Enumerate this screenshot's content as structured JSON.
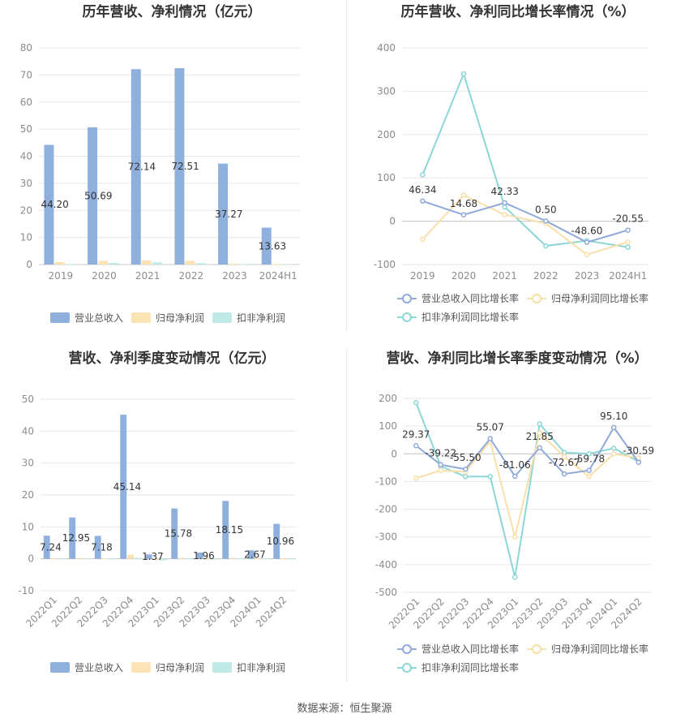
{
  "source_text": "数据来源：恒生聚源",
  "colors": {
    "revenue": "#8fb0dd",
    "net_profit": "#fbe3b5",
    "deducted": "#bfe9e7",
    "rev_growth": "#8fa9d8",
    "np_growth": "#f9dfa9",
    "ded_growth": "#8dd6d6",
    "grid": "#e6e6e6",
    "axis_text": "#8c8c8c",
    "label_text": "#333333"
  },
  "chart_data": [
    {
      "type": "bar",
      "title": "历年营收、净利情况（亿元）",
      "categories": [
        "2019",
        "2020",
        "2021",
        "2022",
        "2023",
        "2024H1"
      ],
      "yticks": [
        "80",
        "70",
        "60",
        "50",
        "40",
        "30",
        "20",
        "10",
        "0"
      ],
      "ylim": [
        0,
        80
      ],
      "series": [
        {
          "name": "营业总收入",
          "values": [
            44.2,
            50.69,
            72.14,
            72.51,
            37.27,
            13.63
          ],
          "labels": [
            "44.20",
            "50.69",
            "72.14",
            "72.51",
            "37.27",
            "13.63"
          ]
        },
        {
          "name": "归母净利润",
          "values": [
            0.9,
            1.4,
            1.5,
            1.4,
            0.3,
            0.2
          ]
        },
        {
          "name": "扣非净利润",
          "values": [
            0.2,
            0.6,
            0.8,
            0.5,
            0.2,
            0.1
          ]
        }
      ],
      "legend_position": "bottom"
    },
    {
      "type": "line",
      "title": "历年营收、净利同比增长率情况（%）",
      "categories": [
        "2019",
        "2020",
        "2021",
        "2022",
        "2023",
        "2024H1"
      ],
      "yticks": [
        "400",
        "300",
        "200",
        "100",
        "0",
        "-100"
      ],
      "ylim": [
        -100,
        400
      ],
      "series": [
        {
          "name": "营业总收入同比增长率",
          "values": [
            46.34,
            14.68,
            42.33,
            0.5,
            -48.6,
            -20.55
          ],
          "labels": [
            "46.34",
            "14.68",
            "42.33",
            "0.50",
            "-48.60",
            "-20.55"
          ]
        },
        {
          "name": "归母净利润同比增长率",
          "values": [
            -42,
            60,
            15,
            -5,
            -77,
            -48
          ]
        },
        {
          "name": "扣非净利润同比增长率",
          "values": [
            107,
            340,
            33,
            -57,
            -45,
            -60
          ]
        }
      ],
      "legend_position": "bottom"
    },
    {
      "type": "bar",
      "title": "营收、净利季度变动情况（亿元）",
      "categories": [
        "2022Q1",
        "2022Q2",
        "2022Q3",
        "2022Q4",
        "2023Q1",
        "2023Q2",
        "2023Q3",
        "2023Q4",
        "2024Q1",
        "2024Q2"
      ],
      "yticks": [
        "50",
        "40",
        "30",
        "20",
        "10",
        "0",
        "-10"
      ],
      "ylim": [
        -10,
        50
      ],
      "series": [
        {
          "name": "营业总收入",
          "values": [
            7.24,
            12.95,
            7.18,
            45.14,
            1.37,
            15.78,
            1.96,
            18.15,
            2.67,
            10.96
          ],
          "labels": [
            "7.24",
            "12.95",
            "7.18",
            "45.14",
            "1.37",
            "15.78",
            "1.96",
            "18.15",
            "2.67",
            "10.96"
          ]
        },
        {
          "name": "归母净利润",
          "values": [
            0.1,
            0.3,
            0.2,
            1.3,
            -0.4,
            0.3,
            -0.1,
            0.3,
            0.1,
            0.1
          ]
        },
        {
          "name": "扣非净利润",
          "values": [
            0.1,
            0.2,
            0.1,
            0.3,
            -0.5,
            0.2,
            -0.1,
            0.2,
            0.1,
            0.1
          ]
        }
      ],
      "legend_position": "bottom"
    },
    {
      "type": "line",
      "title": "营收、净利同比增长率季度变动情况（%）",
      "categories": [
        "2022Q1",
        "2022Q2",
        "2022Q3",
        "2022Q4",
        "2023Q1",
        "2023Q2",
        "2023Q3",
        "2023Q4",
        "2024Q1",
        "2024Q2"
      ],
      "yticks": [
        "200",
        "100",
        "0",
        "-100",
        "-200",
        "-300",
        "-400",
        "-500"
      ],
      "ylim": [
        -500,
        200
      ],
      "series": [
        {
          "name": "营业总收入同比增长率",
          "values": [
            29.37,
            -39.22,
            -55.5,
            55.07,
            -81.06,
            21.85,
            -72.67,
            -59.78,
            95.1,
            -30.59
          ],
          "labels": [
            "29.37",
            "-39.22",
            "-55.50",
            "55.07",
            "-81.06",
            "21.85",
            "-72.67",
            "-59.78",
            "95.10",
            "-30.59"
          ]
        },
        {
          "name": "归母净利润同比增长率",
          "values": [
            -88,
            -60,
            -65,
            45,
            -300,
            75,
            -10,
            -82,
            0,
            -15
          ]
        },
        {
          "name": "扣非净利润同比增长率",
          "values": [
            185,
            -45,
            -82,
            -82,
            -445,
            108,
            5,
            0,
            20,
            -28
          ]
        }
      ],
      "legend_position": "bottom"
    }
  ]
}
